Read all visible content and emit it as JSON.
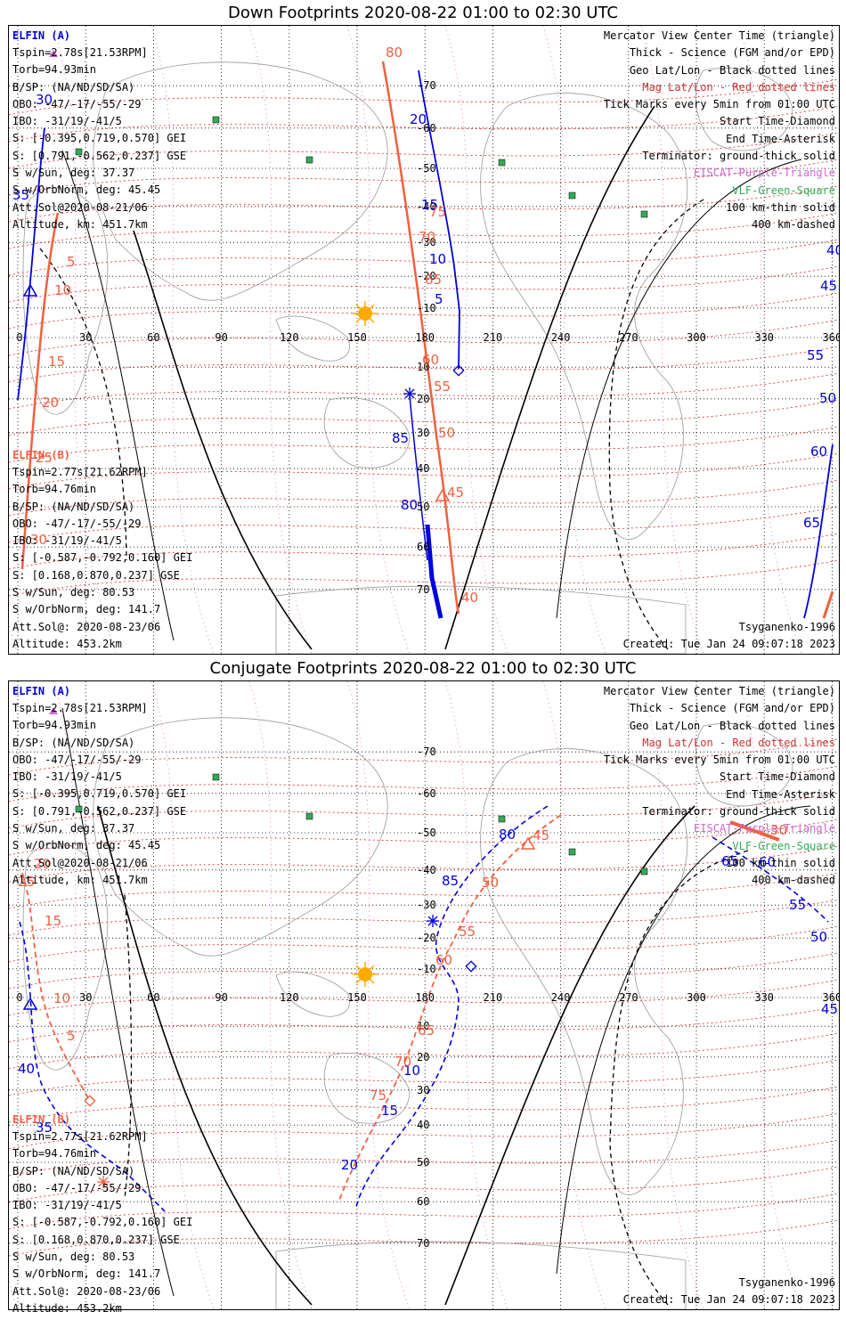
{
  "titles": {
    "top": "Down Footprints 2020-08-22 01:00 to 02:30 UTC",
    "bottom": "Conjugate Footprints 2020-08-22 01:00 to 02:30 UTC"
  },
  "elfin_a": {
    "name": "ELFIN (A)",
    "lines": [
      "Tspin=2.78s[21.53RPM]",
      "Torb=94.93min",
      "B/SP: (NA/ND/SD/SA)",
      "OBO: -47/-17/-55/-29",
      "IBO: -31/19/-41/5",
      "S: [-0.395,0.719,0.570] GEI",
      "S: [0.791,-0.562,0.237] GSE",
      "S w/Sun, deg: 37.37",
      "S w/OrbNorm, deg: 45.45",
      "Att.Sol@2020-08-21/06",
      "Altitude, km: 451.7km"
    ]
  },
  "elfin_b": {
    "name": "ELFIN (B)",
    "lines": [
      "Tspin=2.77s[21.62RPM]",
      "Torb=94.76min",
      "B/SP: (NA/ND/SD/SA)",
      "OBO: -47/-17/-55/-29",
      "IBO: -31/19/-41/5",
      "S: [-0.587,-0.792,0.160] GEI",
      "S: [0.168,0.870,0.237] GSE",
      "S w/Sun, deg: 80.53",
      "S w/OrbNorm, deg: 141.7",
      "Att.Sol@: 2020-08-23/06",
      "Altitude: 453.2km"
    ]
  },
  "legend": [
    {
      "text": "Mercator View Center Time (triangle)",
      "color": "#000000"
    },
    {
      "text": "Thick - Science (FGM and/or EPD)",
      "color": "#000000"
    },
    {
      "text": "Geo Lat/Lon - Black dotted lines",
      "color": "#000000"
    },
    {
      "text": "Mag Lat/Lon - Red dotted lines",
      "color": "#cc3333"
    },
    {
      "text": "Tick Marks every 5min from 01:00 UTC",
      "color": "#000000"
    },
    {
      "text": "Start Time-Diamond",
      "color": "#000000"
    },
    {
      "text": "End Time-Asterisk",
      "color": "#000000"
    },
    {
      "text": "Terminator: ground-thick solid",
      "color": "#000000"
    },
    {
      "text": "EISCAT-Purple-Triangle",
      "color": "#cc66cc"
    },
    {
      "text": "VLF-Green-Square",
      "color": "#33aa55"
    },
    {
      "text": "100 km-thin solid",
      "color": "#000000"
    },
    {
      "text": "400 km-dashed",
      "color": "#000000"
    }
  ],
  "footer": {
    "model": "Tsyganenko-1996",
    "created": "Created: Tue Jan 24 09:07:18 2023"
  },
  "lon_labels": [
    "0",
    "30",
    "60",
    "90",
    "120",
    "150",
    "180",
    "210",
    "240",
    "270",
    "300",
    "330",
    "360"
  ],
  "down_lat_labels": [
    "70",
    "60",
    "50",
    "40",
    "30",
    "20",
    "10",
    "-10",
    "-20",
    "-30",
    "-40",
    "-50",
    "-60",
    "-70"
  ],
  "conj_lat_labels": [
    "70",
    "60",
    "50",
    "40",
    "30",
    "20",
    "10",
    "-10",
    "-20",
    "-30",
    "-40",
    "-50",
    "-60",
    "-70"
  ],
  "colors": {
    "elfin_a": "#0000dd",
    "elfin_b": "#f06040",
    "sun": "#ffaa00",
    "vlf": "#33aa55",
    "eiscat": "#cc66cc"
  },
  "down_ticks_a": [
    "30",
    "35",
    "20",
    "15",
    "10",
    "5",
    "85",
    "80",
    "65",
    "60",
    "55",
    "50",
    "45",
    "40"
  ],
  "down_ticks_b": [
    "80",
    "75",
    "70",
    "65",
    "60",
    "55",
    "50",
    "45",
    "40",
    "5",
    "10",
    "15",
    "20",
    "25",
    "30"
  ],
  "conj_ticks_a": [
    "80",
    "85",
    "40",
    "35",
    "10",
    "15",
    "20",
    "65",
    "60",
    "55",
    "50",
    "45"
  ],
  "conj_ticks_b": [
    "45",
    "50",
    "55",
    "60",
    "65",
    "70",
    "75",
    "10",
    "5",
    "15",
    "20",
    "25",
    "30"
  ]
}
